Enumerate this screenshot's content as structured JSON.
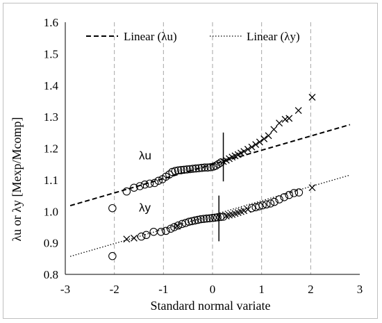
{
  "chart_data": {
    "type": "scatter",
    "xlabel": "Standard normal variate",
    "ylabel": "λu or λy [Mexp/Mcomp]",
    "xlim": [
      -3,
      3
    ],
    "ylim": [
      0.8,
      1.6
    ],
    "x_ticks": [
      "-3",
      "-2",
      "-1",
      "0",
      "1",
      "2",
      "3"
    ],
    "y_ticks": [
      "0.8",
      "0.9",
      "1.0",
      "1.1",
      "1.2",
      "1.3",
      "1.4",
      "1.5",
      "1.6"
    ],
    "grid": "vertical",
    "legend": {
      "placement": "top",
      "entries": [
        {
          "label": "Linear (λu)",
          "style": "dashed"
        },
        {
          "label": "Linear (λy)",
          "style": "dotted"
        }
      ]
    },
    "annotations": [
      {
        "text": "λu",
        "x": -1.5,
        "y": 1.165
      },
      {
        "text": "λy",
        "x": -1.5,
        "y": 1.0
      }
    ],
    "vertical_markers": [
      {
        "series": "λu",
        "x": 0.22,
        "y_range": [
          1.095,
          1.25
        ]
      },
      {
        "series": "λy",
        "x": 0.13,
        "y_range": [
          0.905,
          1.05
        ]
      }
    ],
    "series": [
      {
        "key": "lambda_u_circles",
        "marker": "circle",
        "points": [
          [
            -2.04,
            1.01
          ],
          [
            -1.75,
            1.063
          ],
          [
            -1.6,
            1.075
          ],
          [
            -1.48,
            1.08
          ],
          [
            -1.38,
            1.085
          ],
          [
            -1.28,
            1.088
          ],
          [
            -1.18,
            1.09
          ],
          [
            -1.1,
            1.097
          ],
          [
            -1.02,
            1.102
          ],
          [
            -0.95,
            1.11
          ],
          [
            -0.88,
            1.117
          ],
          [
            -0.82,
            1.125
          ],
          [
            -0.76,
            1.128
          ],
          [
            -0.7,
            1.13
          ],
          [
            -0.64,
            1.131
          ],
          [
            -0.58,
            1.132
          ],
          [
            -0.52,
            1.133
          ],
          [
            -0.46,
            1.134
          ],
          [
            -0.4,
            1.135
          ],
          [
            -0.34,
            1.136
          ],
          [
            -0.28,
            1.137
          ],
          [
            -0.22,
            1.138
          ],
          [
            -0.16,
            1.139
          ],
          [
            -0.1,
            1.139
          ],
          [
            -0.04,
            1.14
          ],
          [
            0.02,
            1.142
          ],
          [
            0.07,
            1.145
          ],
          [
            0.12,
            1.15
          ],
          [
            0.17,
            1.155
          ]
        ]
      },
      {
        "key": "lambda_u_crosses",
        "marker": "cross",
        "points": [
          [
            0.22,
            1.158
          ],
          [
            0.28,
            1.162
          ],
          [
            0.34,
            1.167
          ],
          [
            0.4,
            1.172
          ],
          [
            0.46,
            1.176
          ],
          [
            0.52,
            1.18
          ],
          [
            0.58,
            1.185
          ],
          [
            0.64,
            1.19
          ],
          [
            0.72,
            1.197
          ],
          [
            0.8,
            1.204
          ],
          [
            0.88,
            1.212
          ],
          [
            0.96,
            1.22
          ],
          [
            1.05,
            1.23
          ],
          [
            1.14,
            1.24
          ],
          [
            1.25,
            1.26
          ],
          [
            1.36,
            1.28
          ],
          [
            1.48,
            1.292
          ],
          [
            1.56,
            1.295
          ],
          [
            1.75,
            1.32
          ],
          [
            2.03,
            1.362
          ]
        ]
      },
      {
        "key": "lambda_y_circles",
        "marker": "circle",
        "points": [
          [
            -2.04,
            0.858
          ],
          [
            -1.45,
            0.92
          ],
          [
            -1.35,
            0.925
          ],
          [
            -1.2,
            0.935
          ],
          [
            -1.05,
            0.935
          ],
          [
            -0.95,
            0.938
          ],
          [
            -0.85,
            0.945
          ],
          [
            -0.78,
            0.95
          ],
          [
            -0.7,
            0.955
          ],
          [
            -0.62,
            0.96
          ],
          [
            -0.55,
            0.963
          ],
          [
            -0.48,
            0.967
          ],
          [
            -0.42,
            0.969
          ],
          [
            -0.36,
            0.971
          ],
          [
            -0.3,
            0.973
          ],
          [
            -0.24,
            0.975
          ],
          [
            -0.18,
            0.976
          ],
          [
            -0.12,
            0.977
          ],
          [
            -0.06,
            0.978
          ],
          [
            0.0,
            0.979
          ],
          [
            0.05,
            0.98
          ],
          [
            0.1,
            0.981
          ],
          [
            0.16,
            0.982
          ],
          [
            0.22,
            0.983
          ],
          [
            0.8,
            1.01
          ],
          [
            0.88,
            1.013
          ],
          [
            0.95,
            1.016
          ],
          [
            1.02,
            1.019
          ],
          [
            1.1,
            1.022
          ],
          [
            1.18,
            1.025
          ],
          [
            1.26,
            1.03
          ],
          [
            1.36,
            1.038
          ],
          [
            1.46,
            1.045
          ],
          [
            1.56,
            1.052
          ],
          [
            1.66,
            1.058
          ],
          [
            1.76,
            1.06
          ]
        ]
      },
      {
        "key": "lambda_y_crosses",
        "marker": "cross",
        "points": [
          [
            -1.75,
            0.912
          ],
          [
            -1.6,
            0.915
          ],
          [
            -0.72,
            0.953
          ],
          [
            0.28,
            0.985
          ],
          [
            0.34,
            0.988
          ],
          [
            0.4,
            0.99
          ],
          [
            0.46,
            0.993
          ],
          [
            0.52,
            0.996
          ],
          [
            0.58,
            0.999
          ],
          [
            0.64,
            1.002
          ],
          [
            0.72,
            1.006
          ],
          [
            2.03,
            1.075
          ]
        ]
      }
    ],
    "trendlines": [
      {
        "key": "linear_lambda_u",
        "style": "dashed",
        "from": [
          -2.9,
          1.018
        ],
        "to": [
          2.8,
          1.275
        ]
      },
      {
        "key": "linear_lambda_y",
        "style": "dotted",
        "from": [
          -2.9,
          0.857
        ],
        "to": [
          2.8,
          1.115
        ]
      }
    ]
  }
}
